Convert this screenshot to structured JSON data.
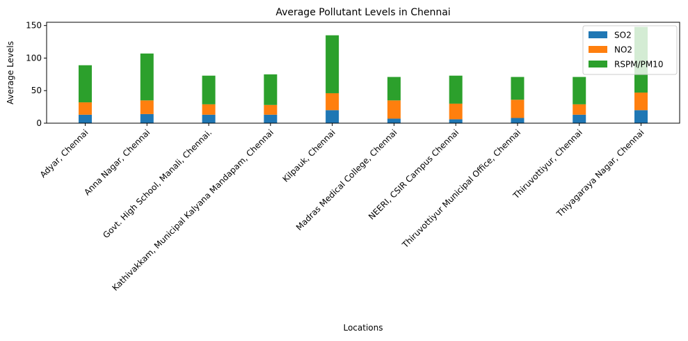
{
  "chart_data": {
    "type": "bar",
    "stacked": true,
    "title": "Average Pollutant Levels in Chennai",
    "xlabel": "Locations",
    "ylabel": "Average Levels",
    "ylim": [
      0,
      155
    ],
    "yticks": [
      0,
      50,
      100,
      150
    ],
    "grid": false,
    "legend_position": "top-right",
    "categories": [
      "Adyar, Chennai",
      "Anna Nagar, Chennai",
      "Govt. High School, Manali, Chennai.",
      "Kathivakkam, Municipal Kalyana Mandapam, Chennai",
      "Kilpauk, Chennai",
      "Madras Medical College, Chennai",
      "NEERI, CSIR Campus Chennai",
      "Thiruvottiyur Municipal Office, Chennai",
      "Thiruvottiyur,  Chennai",
      "Thiyagaraya Nagar, Chennai"
    ],
    "series": [
      {
        "name": "SO2",
        "color": "#1f77b4",
        "values": [
          13,
          14,
          13,
          13,
          20,
          7,
          6,
          8,
          13,
          20
        ]
      },
      {
        "name": "NO2",
        "color": "#ff7f0e",
        "values": [
          19,
          21,
          16,
          15,
          26,
          28,
          24,
          28,
          16,
          27
        ]
      },
      {
        "name": "RSPM/PM10",
        "color": "#2ca02c",
        "values": [
          57,
          72,
          44,
          47,
          89,
          36,
          43,
          35,
          42,
          101
        ]
      }
    ]
  }
}
